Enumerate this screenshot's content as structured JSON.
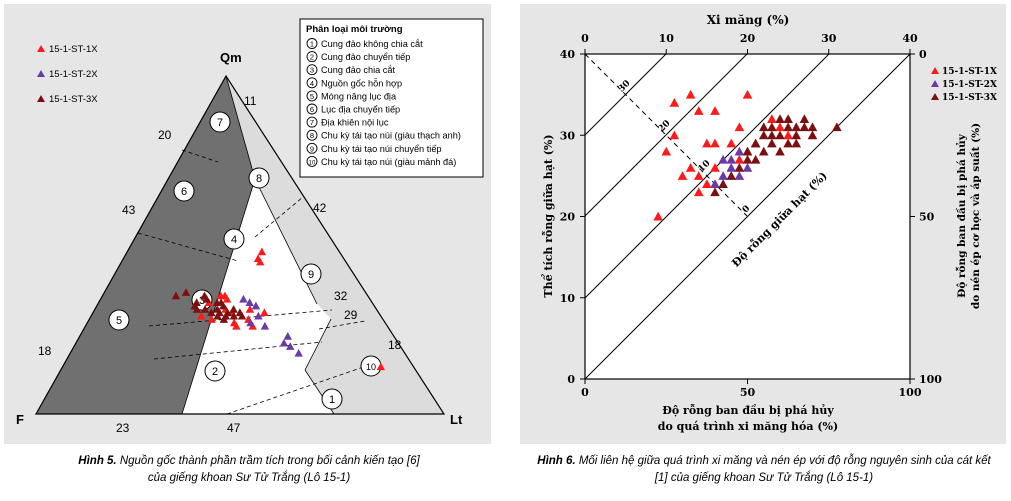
{
  "figure5": {
    "caption_label": "Hình 5.",
    "caption_line1": " Nguồn gốc thành phần trầm tích trong bối cảnh kiến tạo [6]",
    "caption_line2": "của giếng khoan Sư Tử Trắng (Lô 15-1)"
  },
  "figure6": {
    "caption_label": "Hình 6.",
    "caption_line1": " Mối liên hệ giữa quá trình xi măng và nén ép với độ rỗng nguyên sinh của cát kết",
    "caption_line2": "[1] của giếng khoan Sư Tử Trắng (Lô 15-1)"
  },
  "chart_data": [
    {
      "type": "scatter",
      "subtype": "ternary",
      "vertices": {
        "top": "Qm",
        "left": "F",
        "right": "Lt"
      },
      "legend": {
        "placement": "top-left",
        "items": [
          {
            "name": "15-1-ST-1X",
            "marker": "triangle",
            "color": "#ff1a1a"
          },
          {
            "name": "15-1-ST-2X",
            "marker": "triangle",
            "color": "#6a3aa8"
          },
          {
            "name": "15-1-ST-3X",
            "marker": "triangle",
            "color": "#7a1010"
          }
        ]
      },
      "classification_box": {
        "title": "Phân loại môi trường",
        "items": [
          {
            "num": "1",
            "label": "Cung đảo không chia cắt"
          },
          {
            "num": "2",
            "label": "Cung đảo chuyển tiếp"
          },
          {
            "num": "3",
            "label": "Cung đảo chia cắt"
          },
          {
            "num": "4",
            "label": "Nguồn gốc hỗn hợp"
          },
          {
            "num": "5",
            "label": "Móng nâng lục địa"
          },
          {
            "num": "6",
            "label": "Lục địa chuyển tiếp"
          },
          {
            "num": "7",
            "label": "Địa khiên nội lục"
          },
          {
            "num": "8",
            "label": "Chu kỳ tái tạo núi (giàu thạch anh)"
          },
          {
            "num": "9",
            "label": "Chu kỳ tái tạo núi chuyển tiếp"
          },
          {
            "num": "10",
            "label": "Chu kỳ tái tạo núi (giàu mảnh đá)"
          }
        ]
      },
      "region_labels": [
        "1",
        "2",
        "3",
        "4",
        "5",
        "6",
        "7",
        "8",
        "9",
        "10"
      ],
      "boundary_tick_labels": [
        "11",
        "20",
        "43",
        "18",
        "42",
        "32",
        "29",
        "18",
        "23",
        "47"
      ],
      "series": [
        {
          "name": "15-1-ST-1X",
          "points": [
            {
              "qm": 35,
              "lt": 29
            },
            {
              "qm": 35,
              "lt": 30
            },
            {
              "qm": 34,
              "lt": 31
            },
            {
              "qm": 33,
              "lt": 27
            },
            {
              "qm": 31,
              "lt": 32
            },
            {
              "qm": 30,
              "lt": 34
            },
            {
              "qm": 29,
              "lt": 27
            },
            {
              "qm": 28,
              "lt": 30
            },
            {
              "qm": 27,
              "lt": 36
            },
            {
              "qm": 31,
              "lt": 38
            },
            {
              "qm": 28,
              "lt": 39
            },
            {
              "qm": 26,
              "lt": 41
            },
            {
              "qm": 46,
              "lt": 33
            },
            {
              "qm": 45,
              "lt": 34
            },
            {
              "qm": 48,
              "lt": 33
            },
            {
              "qm": 30,
              "lt": 42
            },
            {
              "qm": 26,
              "lt": 37
            },
            {
              "qm": 14,
              "lt": 78
            }
          ]
        },
        {
          "name": "15-1-ST-2X",
          "points": [
            {
              "qm": 33,
              "lt": 37
            },
            {
              "qm": 32,
              "lt": 39
            },
            {
              "qm": 29,
              "lt": 41
            },
            {
              "qm": 27,
              "lt": 40
            },
            {
              "qm": 26,
              "lt": 44
            },
            {
              "qm": 23,
              "lt": 51
            },
            {
              "qm": 21,
              "lt": 51
            },
            {
              "qm": 20,
              "lt": 53
            },
            {
              "qm": 18,
              "lt": 56
            },
            {
              "qm": 34,
              "lt": 35
            }
          ]
        },
        {
          "name": "15-1-ST-3X",
          "points": [
            {
              "qm": 36,
              "lt": 20
            },
            {
              "qm": 35,
              "lt": 18
            },
            {
              "qm": 35,
              "lt": 25
            },
            {
              "qm": 34,
              "lt": 26
            },
            {
              "qm": 33,
              "lt": 24
            },
            {
              "qm": 32,
              "lt": 24
            },
            {
              "qm": 31,
              "lt": 25
            },
            {
              "qm": 31,
              "lt": 30
            },
            {
              "qm": 30,
              "lt": 29
            },
            {
              "qm": 30,
              "lt": 33
            },
            {
              "qm": 30,
              "lt": 31
            },
            {
              "qm": 29,
              "lt": 31
            },
            {
              "qm": 29,
              "lt": 33
            },
            {
              "qm": 29,
              "lt": 35
            },
            {
              "qm": 28,
              "lt": 33
            },
            {
              "qm": 33,
              "lt": 29
            },
            {
              "qm": 32,
              "lt": 31
            },
            {
              "qm": 31,
              "lt": 27
            },
            {
              "qm": 29,
              "lt": 37
            },
            {
              "qm": 30,
              "lt": 36
            },
            {
              "qm": 33,
              "lt": 30
            },
            {
              "qm": 31,
              "lt": 34
            }
          ]
        }
      ]
    },
    {
      "type": "scatter",
      "x_bottom_label": [
        "Độ rỗng ban đầu bị phá hủy",
        "do quá trình xi măng hóa (%)"
      ],
      "x_bottom_ticks": [
        0,
        50,
        100
      ],
      "x_top_label": "Xi măng (%)",
      "x_top_ticks": [
        0,
        10,
        20,
        30,
        40
      ],
      "y_left_label": "Thể tích rỗng giữa hạt (%)",
      "y_left_ticks": [
        0,
        10,
        20,
        30,
        40
      ],
      "y_right_label": [
        "Độ rỗng ban đầu bị phá hủy",
        "do nén ép cơ học và áp suất (%)"
      ],
      "y_right_ticks": [
        0,
        50,
        100
      ],
      "xlim": [
        0,
        40
      ],
      "ylim": [
        0,
        40
      ],
      "diagonal_label": "Độ rỗng giữa hạt (%)",
      "diagonal_values": [
        0,
        10,
        20,
        30
      ],
      "legend": {
        "placement": "top-right",
        "items": [
          {
            "name": "15-1-ST-1X",
            "marker": "triangle",
            "color": "#ff1a1a"
          },
          {
            "name": "15-1-ST-2X",
            "marker": "triangle",
            "color": "#6a3aa8"
          },
          {
            "name": "15-1-ST-3X",
            "marker": "triangle",
            "color": "#7a1010"
          }
        ]
      },
      "series": [
        {
          "name": "15-1-ST-1X",
          "points": [
            {
              "x": 11,
              "y": 34
            },
            {
              "x": 13,
              "y": 35
            },
            {
              "x": 20,
              "y": 35
            },
            {
              "x": 14,
              "y": 33
            },
            {
              "x": 16,
              "y": 33
            },
            {
              "x": 10,
              "y": 28
            },
            {
              "x": 11,
              "y": 30
            },
            {
              "x": 15,
              "y": 29
            },
            {
              "x": 16,
              "y": 29
            },
            {
              "x": 18,
              "y": 29
            },
            {
              "x": 13,
              "y": 26
            },
            {
              "x": 14,
              "y": 25
            },
            {
              "x": 15,
              "y": 24
            },
            {
              "x": 16,
              "y": 26
            },
            {
              "x": 12,
              "y": 25
            },
            {
              "x": 9,
              "y": 20
            },
            {
              "x": 19,
              "y": 27
            },
            {
              "x": 20,
              "y": 28
            },
            {
              "x": 23,
              "y": 32
            },
            {
              "x": 24,
              "y": 31
            },
            {
              "x": 25,
              "y": 30
            },
            {
              "x": 19,
              "y": 31
            },
            {
              "x": 14,
              "y": 23
            }
          ]
        },
        {
          "name": "15-1-ST-2X",
          "points": [
            {
              "x": 16,
              "y": 24
            },
            {
              "x": 17,
              "y": 25
            },
            {
              "x": 18,
              "y": 26
            },
            {
              "x": 17,
              "y": 27
            },
            {
              "x": 19,
              "y": 28
            },
            {
              "x": 21,
              "y": 29
            },
            {
              "x": 20,
              "y": 26
            },
            {
              "x": 19,
              "y": 25
            },
            {
              "x": 18,
              "y": 27
            }
          ]
        },
        {
          "name": "15-1-ST-3X",
          "points": [
            {
              "x": 22,
              "y": 31
            },
            {
              "x": 23,
              "y": 31
            },
            {
              "x": 24,
              "y": 32
            },
            {
              "x": 25,
              "y": 32
            },
            {
              "x": 26,
              "y": 31
            },
            {
              "x": 27,
              "y": 32
            },
            {
              "x": 28,
              "y": 30
            },
            {
              "x": 26,
              "y": 30
            },
            {
              "x": 25,
              "y": 29
            },
            {
              "x": 24,
              "y": 28
            },
            {
              "x": 22,
              "y": 30
            },
            {
              "x": 21,
              "y": 29
            },
            {
              "x": 20,
              "y": 28
            },
            {
              "x": 21,
              "y": 27
            },
            {
              "x": 20,
              "y": 27
            },
            {
              "x": 19,
              "y": 26
            },
            {
              "x": 18,
              "y": 25
            },
            {
              "x": 17,
              "y": 24
            },
            {
              "x": 16,
              "y": 23
            },
            {
              "x": 23,
              "y": 29
            },
            {
              "x": 24,
              "y": 30
            },
            {
              "x": 26,
              "y": 29
            },
            {
              "x": 27,
              "y": 31
            },
            {
              "x": 25,
              "y": 31
            },
            {
              "x": 31,
              "y": 31
            },
            {
              "x": 22,
              "y": 28
            },
            {
              "x": 28,
              "y": 31
            },
            {
              "x": 23,
              "y": 30
            }
          ]
        }
      ]
    }
  ]
}
